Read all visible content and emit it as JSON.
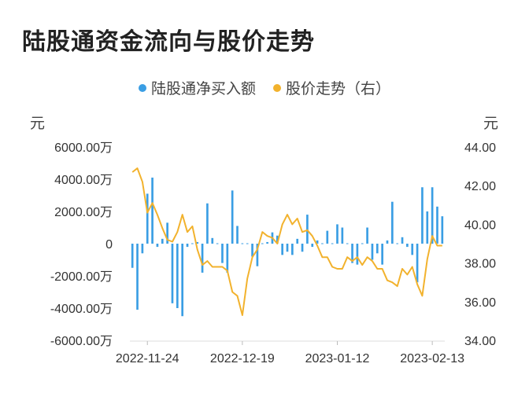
{
  "title": "陆股通资金流向与股价走势",
  "legend": {
    "bar_label": "陆股通净买入额",
    "line_label": "股价走势（右）"
  },
  "units": {
    "left": "元",
    "right": "元"
  },
  "colors": {
    "bar": "#3a9ee4",
    "line": "#f2b22d",
    "axis": "#dddddd"
  },
  "chart_data": {
    "type": "bar+line",
    "title": "陆股通资金流向与股价走势",
    "x_ticks": [
      "2022-11-24",
      "2022-12-19",
      "2023-01-12",
      "2023-02-13"
    ],
    "x_tick_index": [
      3,
      22,
      41,
      60
    ],
    "left_axis": {
      "label": "元",
      "ylim": [
        -6000,
        6000
      ],
      "ticks": [
        "6000.00万",
        "4000.00万",
        "2000.00万",
        "0",
        "-2000.00万",
        "-4000.00万",
        "-6000.00万"
      ],
      "tick_values": [
        6000,
        4000,
        2000,
        0,
        -2000,
        -4000,
        -6000
      ]
    },
    "right_axis": {
      "label": "元",
      "ylim": [
        34,
        44
      ],
      "ticks": [
        "44.00",
        "42.00",
        "40.00",
        "38.00",
        "36.00",
        "34.00"
      ],
      "tick_values": [
        44,
        42,
        40,
        38,
        36,
        34
      ]
    },
    "series": [
      {
        "name": "陆股通净买入额",
        "kind": "bar",
        "axis": "left",
        "values": [
          -1500,
          -4100,
          -600,
          3100,
          4100,
          -200,
          300,
          1300,
          -3700,
          -4000,
          -4500,
          -200,
          0,
          100,
          -1800,
          2500,
          350,
          0,
          -1200,
          -1800,
          3300,
          1100,
          0,
          0,
          -800,
          -1400,
          0,
          100,
          700,
          500,
          -700,
          -500,
          -700,
          300,
          -500,
          1800,
          -200,
          200,
          0,
          800,
          0,
          1200,
          1000,
          0,
          -1200,
          -1300,
          0,
          1000,
          -1000,
          -600,
          -1300,
          200,
          2600,
          0,
          400,
          -200,
          -700,
          -2400,
          3500,
          2000,
          3500,
          2300,
          1700
        ]
      },
      {
        "name": "股价走势（右）",
        "kind": "line",
        "axis": "right",
        "values": [
          42.7,
          42.9,
          42.2,
          40.6,
          41.1,
          40.5,
          39.8,
          39.2,
          39.1,
          39.6,
          40.5,
          39.6,
          39.9,
          38.7,
          37.9,
          38.1,
          37.8,
          37.8,
          37.8,
          37.6,
          36.5,
          36.3,
          35.3,
          37.2,
          38.3,
          38.7,
          39.6,
          39.4,
          39.3,
          39.0,
          40.0,
          40.5,
          40.0,
          40.3,
          39.6,
          39.7,
          39.4,
          38.9,
          38.3,
          38.3,
          37.8,
          37.7,
          37.7,
          38.3,
          38.1,
          38.3,
          37.9,
          38.3,
          38.1,
          37.7,
          37.7,
          37.1,
          37.0,
          36.8,
          37.7,
          37.4,
          37.8,
          36.9,
          36.3,
          38.2,
          39.4,
          38.9,
          38.9
        ]
      }
    ],
    "grid": false,
    "legend_position": "top-center"
  }
}
